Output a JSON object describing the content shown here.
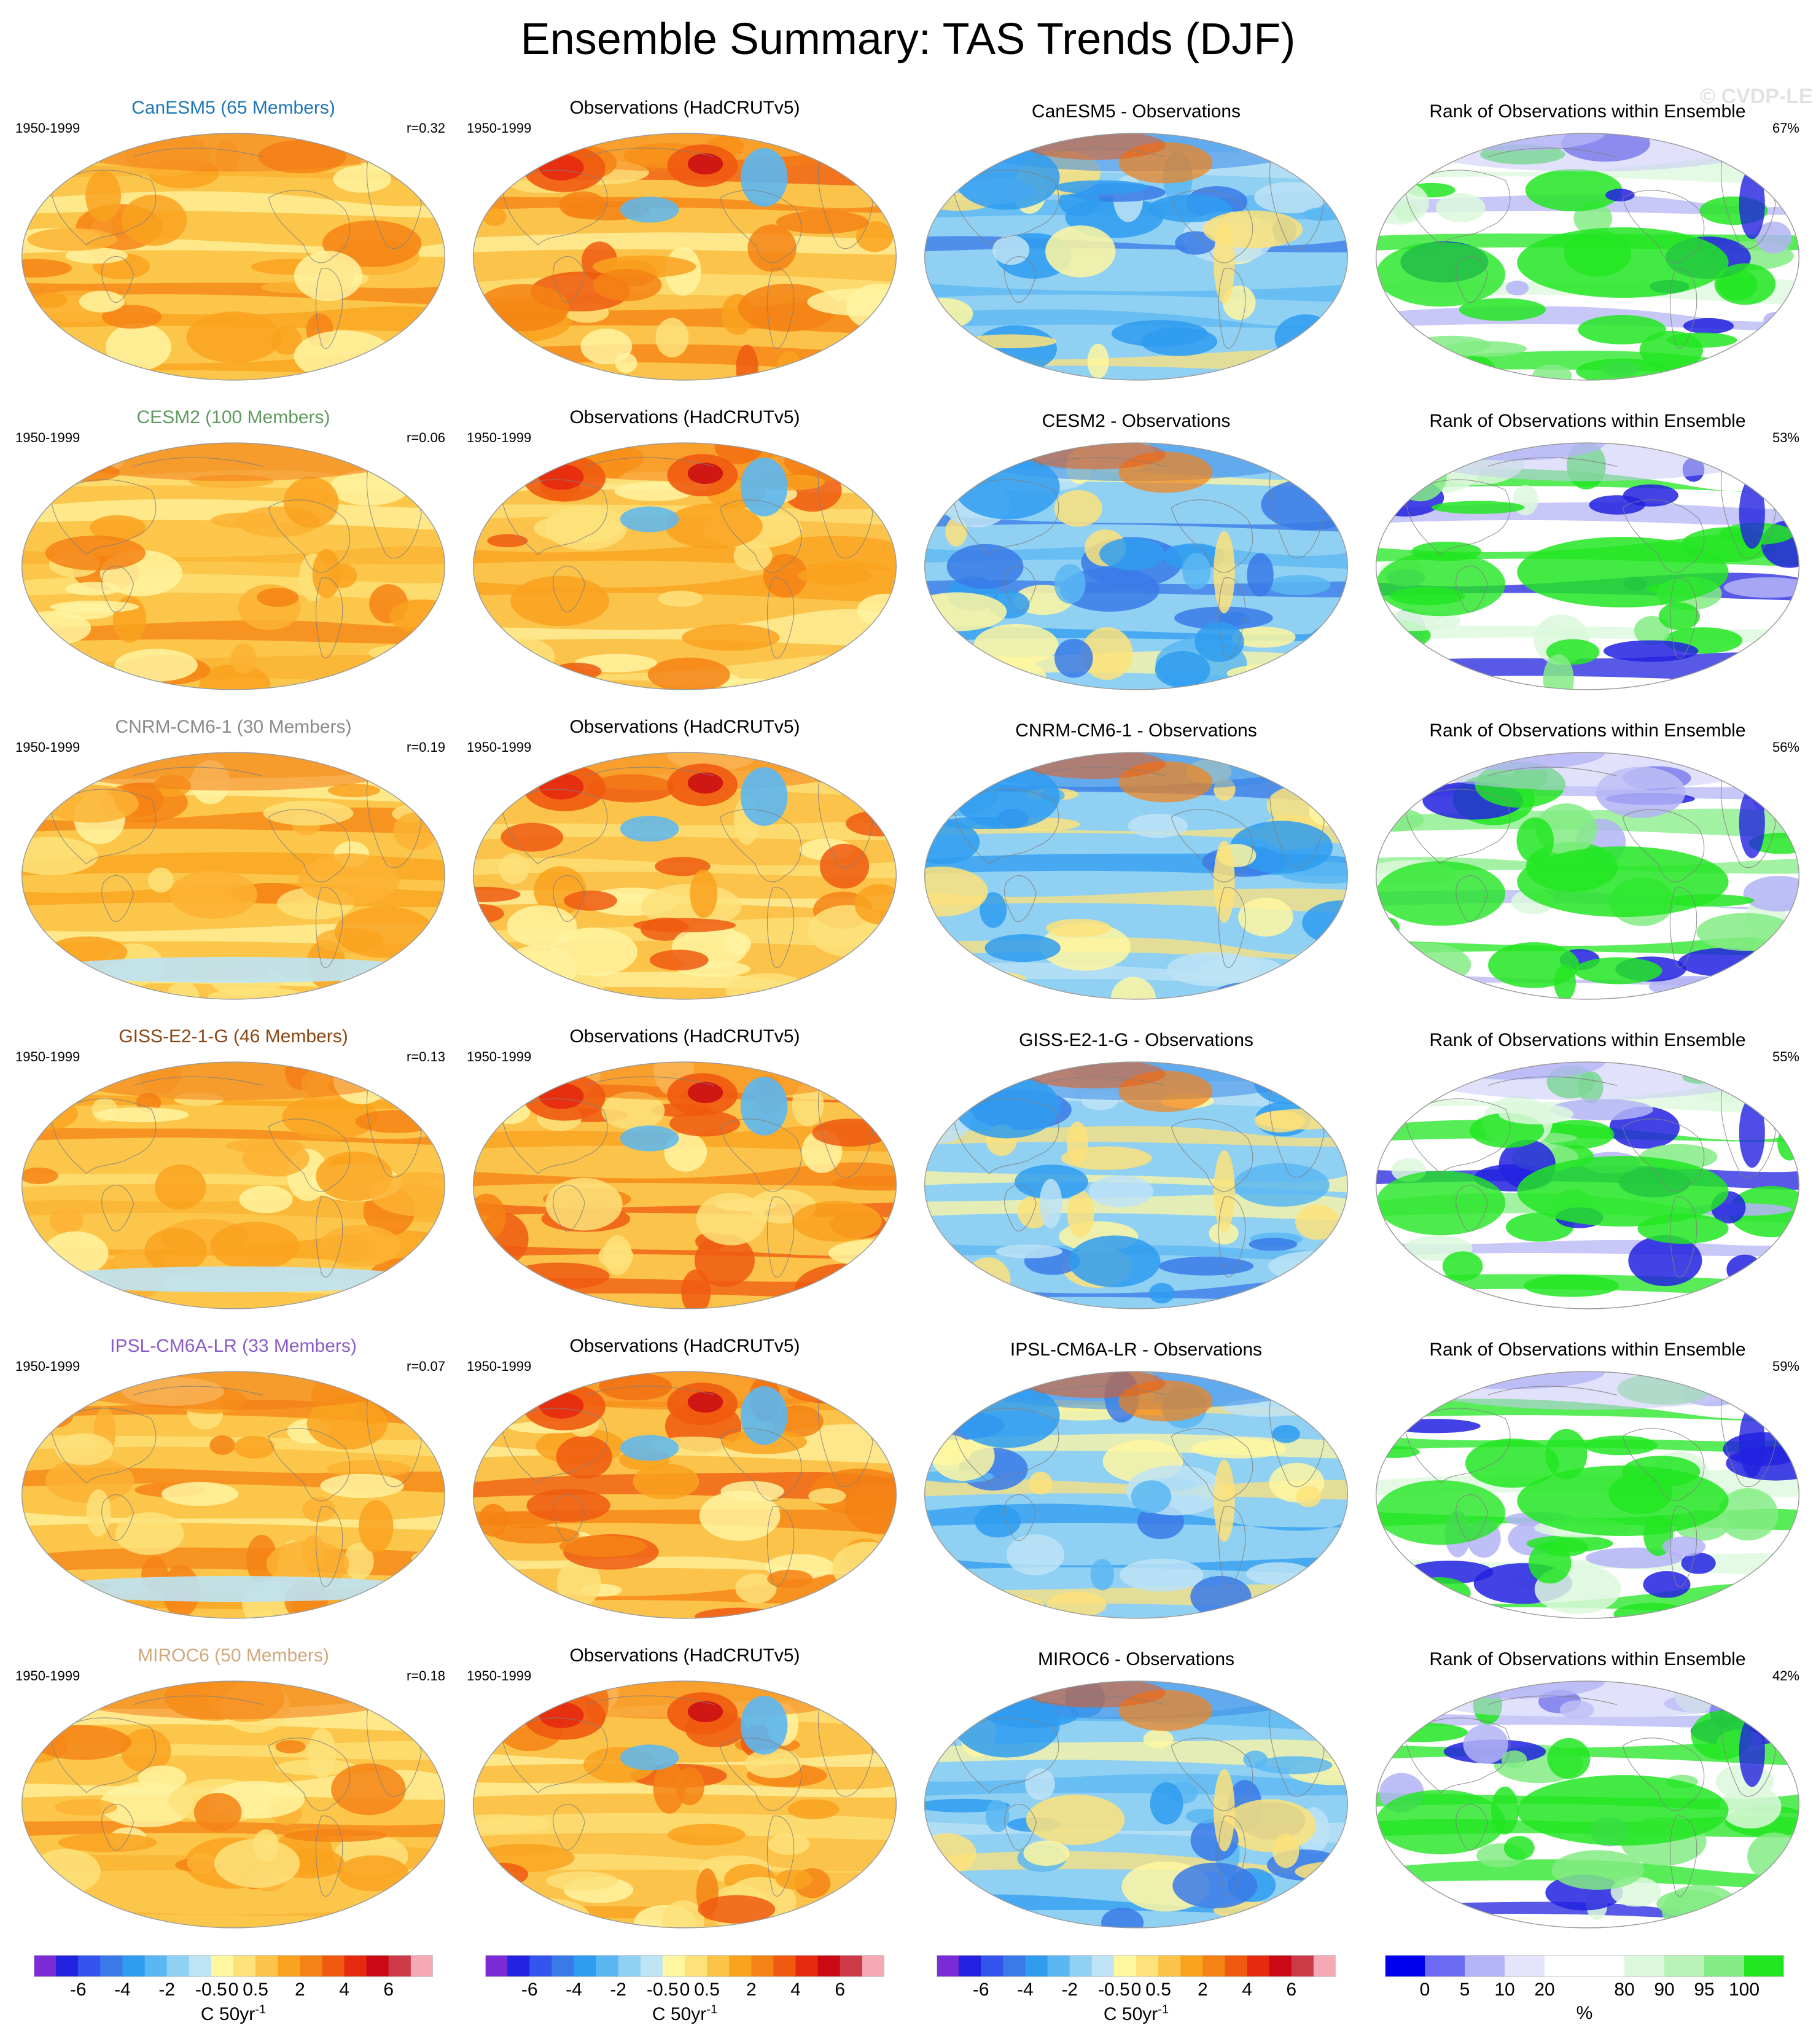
{
  "title": "Ensemble Summary: TAS Trends (DJF)",
  "watermark": "© CVDP-LE",
  "rows": [
    {
      "model_title": "CanESM5 (65 Members)",
      "model_color": "#1f77b4",
      "period": "1950-1999",
      "r_label": "r=0.32",
      "obs_title": "Observations (HadCRUTv5)",
      "diff_title": "CanESM5 - Observations",
      "rank_title": "Rank of Observations within Ensemble",
      "rank_pct": "67%"
    },
    {
      "model_title": "CESM2 (100 Members)",
      "model_color": "#5f9a5f",
      "period": "1950-1999",
      "r_label": "r=0.06",
      "obs_title": "Observations (HadCRUTv5)",
      "diff_title": "CESM2 - Observations",
      "rank_title": "Rank of Observations within Ensemble",
      "rank_pct": "53%"
    },
    {
      "model_title": "CNRM-CM6-1 (30 Members)",
      "model_color": "#8a8a8a",
      "period": "1950-1999",
      "r_label": "r=0.19",
      "obs_title": "Observations (HadCRUTv5)",
      "diff_title": "CNRM-CM6-1 - Observations",
      "rank_title": "Rank of Observations within Ensemble",
      "rank_pct": "56%"
    },
    {
      "model_title": "GISS-E2-1-G (46 Members)",
      "model_color": "#8b4513",
      "period": "1950-1999",
      "r_label": "r=0.13",
      "obs_title": "Observations (HadCRUTv5)",
      "diff_title": "GISS-E2-1-G - Observations",
      "rank_title": "Rank of Observations within Ensemble",
      "rank_pct": "55%"
    },
    {
      "model_title": "IPSL-CM6A-LR (33 Members)",
      "model_color": "#8a5cc8",
      "period": "1950-1999",
      "r_label": "r=0.07",
      "obs_title": "Observations (HadCRUTv5)",
      "diff_title": "IPSL-CM6A-LR - Observations",
      "rank_title": "Rank of Observations within Ensemble",
      "rank_pct": "59%"
    },
    {
      "model_title": "MIROC6 (50 Members)",
      "model_color": "#d2a87a",
      "period": "1950-1999",
      "r_label": "r=0.18",
      "obs_title": "Observations (HadCRUTv5)",
      "diff_title": "MIROC6 - Observations",
      "rank_title": "Rank of Observations within Ensemble",
      "rank_pct": "42%"
    }
  ],
  "trend_colorbar": {
    "tick_labels": [
      "-6",
      "-4",
      "-2",
      "-0.5",
      "0",
      "0.5",
      "2",
      "4",
      "6"
    ],
    "unit_text": "C 50yr",
    "unit_exponent": "-1",
    "colors": [
      "#7a2bd6",
      "#2222e0",
      "#3355ee",
      "#3a7ae8",
      "#2f9cf0",
      "#5bb7f2",
      "#8fd0f3",
      "#bde3f5",
      "#fff7a0",
      "#fde27a",
      "#fbc34a",
      "#f9a21e",
      "#f58214",
      "#ef5a10",
      "#e62a10",
      "#c90a14",
      "#cc3a48",
      "#f4a9b4"
    ]
  },
  "rank_colorbar": {
    "tick_labels": [
      "0",
      "5",
      "10",
      "20",
      "80",
      "90",
      "95",
      "100"
    ],
    "unit_text": "%",
    "colors": [
      "#0000ee",
      "#6a6af2",
      "#b4b4f6",
      "#e4e4fc",
      "#ffffff",
      "#ffffff",
      "#dcf8dc",
      "#b8f2b8",
      "#84ec84",
      "#22e622"
    ]
  }
}
